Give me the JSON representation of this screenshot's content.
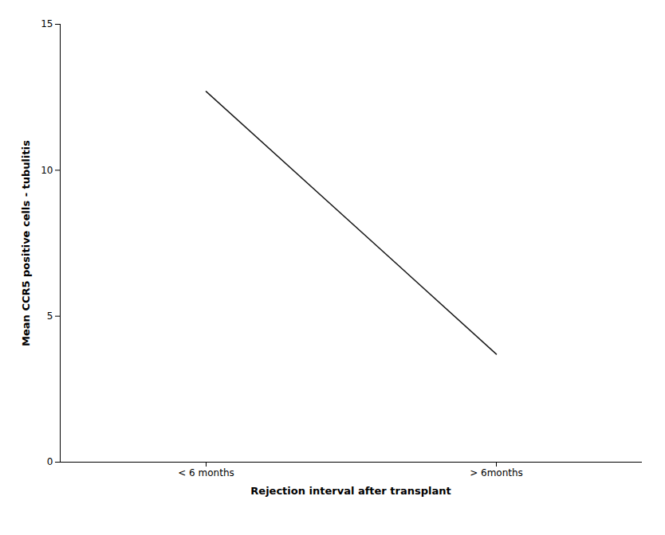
{
  "chart_data": {
    "type": "line",
    "categories": [
      "< 6 months",
      "> 6months"
    ],
    "values": [
      12.7,
      3.7
    ],
    "color": "#1a1a1a",
    "xlabel": "Rejection interval after transplant",
    "ylabel": "Mean CCR5 positive cells - tubulitis",
    "ylim": [
      0,
      15
    ],
    "yticks": [
      0,
      5,
      10,
      15
    ],
    "grid": false
  }
}
